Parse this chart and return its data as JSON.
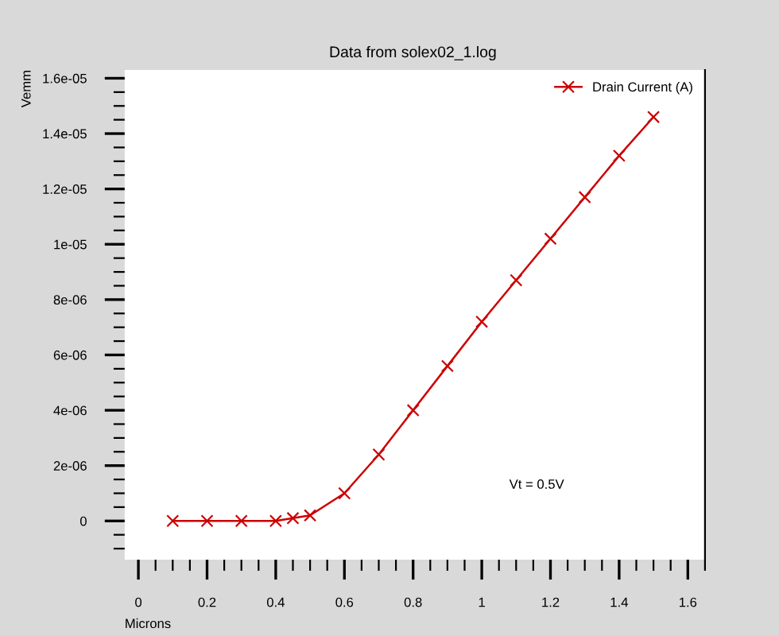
{
  "chart_data": {
    "type": "line",
    "subtitle": "Data from solex02_1.log",
    "xlabel": "Microns",
    "ylabel": "Vemm",
    "x": [
      0.1,
      0.2,
      0.3,
      0.4,
      0.45,
      0.5,
      0.6,
      0.7,
      0.8,
      0.9,
      1.0,
      1.1,
      1.2,
      1.3,
      1.4,
      1.5
    ],
    "series": [
      {
        "name": "Drain Current (A)",
        "color": "#cc0000",
        "values": [
          0,
          0,
          0,
          0,
          1e-07,
          2e-07,
          1e-06,
          2.4e-06,
          4e-06,
          5.6e-06,
          7.2e-06,
          8.7e-06,
          1.02e-05,
          1.17e-05,
          1.32e-05,
          1.46e-05
        ]
      }
    ],
    "marker": "cross",
    "line_style": "solid",
    "legend": "top right",
    "grid": false,
    "annotations": [
      "Vt = 0.5V"
    ],
    "xlim": [
      -0.04,
      1.65
    ],
    "xticks": [
      0,
      0.2,
      0.4,
      0.6,
      0.8,
      1,
      1.2,
      1.4,
      1.6
    ],
    "ylim": [
      -1.4e-06,
      1.63e-05
    ],
    "yticks": [
      0,
      {
        "value": 2e-06,
        "label": "2e-06"
      },
      {
        "value": 4e-06,
        "label": "4e-06"
      },
      {
        "value": 6e-06,
        "label": "6e-06"
      },
      {
        "value": 8e-06,
        "label": "8e-06"
      },
      {
        "value": 1e-05,
        "label": "1e-05"
      },
      {
        "value": 1.2e-05,
        "label": "1.2e-05"
      },
      {
        "value": 1.4e-05,
        "label": "1.4e-05"
      },
      {
        "value": 1.6e-05,
        "label": "1.6e-05"
      }
    ]
  }
}
